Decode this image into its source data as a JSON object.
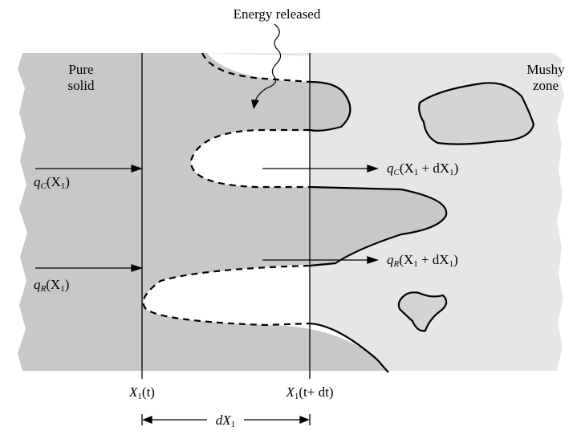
{
  "labels": {
    "energy_released": "Energy released",
    "pure_solid": [
      "Pure",
      "solid"
    ],
    "mushy_zone": [
      "Mushy",
      "zone"
    ],
    "qc_left": {
      "q": "q",
      "qsub": "C",
      "open": "(X",
      "xsub": "1",
      "close": ")"
    },
    "qr_left": {
      "q": "q",
      "qsub": "R",
      "open": "(X",
      "xsub": "1",
      "close": ")"
    },
    "qc_right": {
      "q": "q",
      "qsub": "C",
      "open": "(X",
      "xsub": "1",
      "mid": " + dX",
      "dxsub": "1",
      "close": ")"
    },
    "qr_right": {
      "q": "q",
      "qsub": "R",
      "open": "(X",
      "xsub": "1",
      "mid": " + dX",
      "dxsub": "1",
      "close": ")"
    },
    "x1_t": {
      "x": "X",
      "sub": "1",
      "rest": "(t)"
    },
    "x1_tdt": {
      "x": "X",
      "sub": "1",
      "rest": "(t+ dt)"
    },
    "dx1": {
      "x": "dX",
      "sub": "1"
    }
  },
  "colors": {
    "pure_solid_fill": "#c8c8c8",
    "mushy_fill": "#e6e6e6",
    "solid_island_fill": "#d4d4d4",
    "line": "#000000"
  }
}
